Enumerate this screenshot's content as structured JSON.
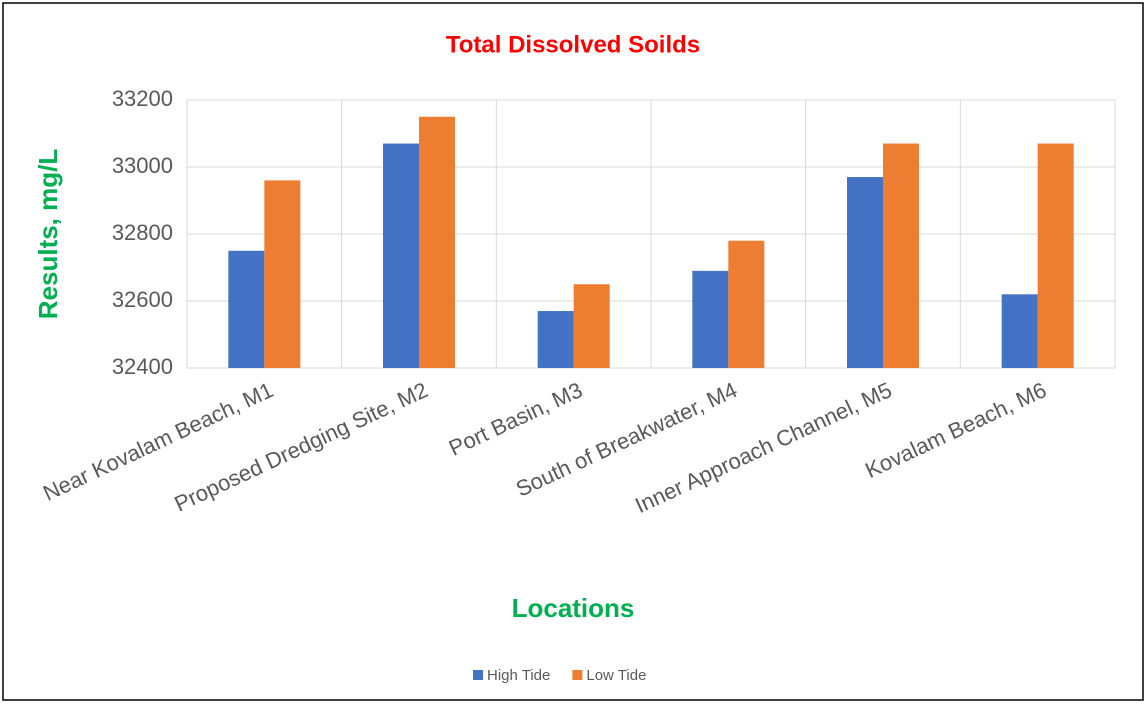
{
  "chart_data": {
    "type": "bar",
    "title": "Total Dissolved Soilds",
    "x_label": "Locations",
    "y_label": "Results, mg/L",
    "categories": [
      "Near Kovalam Beach, M1",
      "Proposed Dredging Site, M2",
      "Port Basin, M3",
      "South of Breakwater, M4",
      "Inner Approach Channel, M5",
      "Kovalam Beach, M6"
    ],
    "series": [
      {
        "name": "High Tide",
        "color": "#4472c4",
        "values": [
          32750,
          33070,
          32570,
          32690,
          32970,
          32620
        ]
      },
      {
        "name": "Low Tide",
        "color": "#ed7d31",
        "values": [
          32960,
          33150,
          32650,
          32780,
          33070,
          33070
        ]
      }
    ],
    "ylim": [
      32400,
      33200
    ],
    "yticks": [
      32400,
      32600,
      32800,
      33000,
      33200
    ],
    "grid": true,
    "legend": "bottom"
  }
}
